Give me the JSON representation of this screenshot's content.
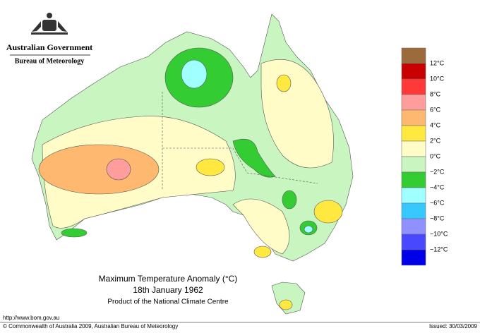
{
  "header": {
    "government": "Australian Government",
    "bureau": "Bureau of Meteorology"
  },
  "title": {
    "line1": "Maximum Temperature Anomaly (°C)",
    "line2": "18th January 1962",
    "line3": "Product of the National Climate Centre"
  },
  "legend": {
    "items": [
      {
        "label": null,
        "color": "#9c6b3c"
      },
      {
        "label": "12°C",
        "color": "#c80000"
      },
      {
        "label": "10°C",
        "color": "#ff3838"
      },
      {
        "label": "8°C",
        "color": "#ff9c9c"
      },
      {
        "label": "6°C",
        "color": "#ffb870"
      },
      {
        "label": "4°C",
        "color": "#ffe840"
      },
      {
        "label": "2°C",
        "color": "#fffcc8"
      },
      {
        "label": "0°C",
        "color": "#c8f5c0"
      },
      {
        "label": "−2°C",
        "color": "#33cc33"
      },
      {
        "label": "−4°C",
        "color": "#a0ffff"
      },
      {
        "label": "−6°C",
        "color": "#36c8ff"
      },
      {
        "label": "−8°C",
        "color": "#9090ff"
      },
      {
        "label": "−10°C",
        "color": "#4848ff"
      },
      {
        "label": "−12°C",
        "color": "#0000e8"
      }
    ]
  },
  "footer": {
    "url": "http://www.bom.gov.au",
    "copyright": "© Commonwealth of Australia 2009, Australian Bureau of Meteorology",
    "issued": "Issued: 30/03/2009"
  }
}
